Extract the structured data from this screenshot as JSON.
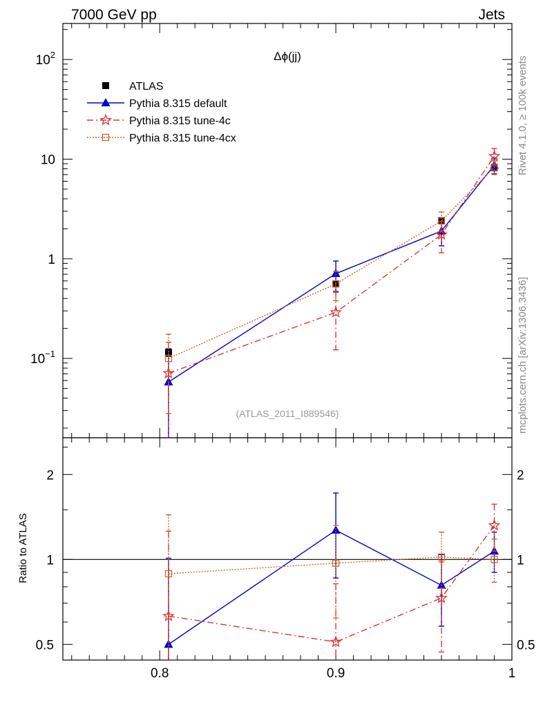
{
  "header": {
    "left": "7000 GeV pp",
    "right": "Jets"
  },
  "side": {
    "rivet": "Rivet 4.1.0, ≥ 100k events",
    "mcplots": "mcplots.cern.ch [arXiv:1306.3436]"
  },
  "colors": {
    "atlas": "#000000",
    "default": "#0000cc",
    "tune4c": "#dd3333",
    "tune4cx": "#cc6622"
  },
  "chart_data": {
    "type": "line",
    "title": "Δϕ(jj)",
    "watermark": "(ATLAS_2011_I889546)",
    "xlim": [
      0.745,
      1.0
    ],
    "xticks": [
      0.8,
      0.9,
      1.0
    ],
    "xtick_labels": [
      "0.8",
      "0.9",
      "1"
    ],
    "upper": {
      "yscale": "log",
      "ylim": [
        0.016,
        230
      ],
      "ytick_labels": [
        {
          "value": 0.1,
          "base": "10",
          "exp": "−1"
        },
        {
          "value": 1,
          "base": "1",
          "exp": ""
        },
        {
          "value": 10,
          "base": "10",
          "exp": ""
        },
        {
          "value": 100,
          "base": "10",
          "exp": "2"
        }
      ]
    },
    "lower": {
      "ylabel": "Ratio to ATLAS",
      "yscale": "log",
      "ylim": [
        0.44,
        2.7
      ],
      "ytick_labels": [
        {
          "value": 0.5,
          "label": "0.5"
        },
        {
          "value": 1,
          "label": "1"
        },
        {
          "value": 2,
          "label": "2"
        }
      ],
      "reference": 1
    },
    "series": [
      {
        "name": "ATLAS",
        "key": "atlas",
        "marker": "square-filled",
        "dash": "none",
        "points": [
          {
            "x": 0.805,
            "y": 0.115,
            "lo": 0.105,
            "hi": 0.125
          },
          {
            "x": 0.9,
            "y": 0.56,
            "lo": 0.53,
            "hi": 0.59
          },
          {
            "x": 0.96,
            "y": 2.42,
            "lo": 2.32,
            "hi": 2.52
          },
          {
            "x": 0.99,
            "y": 8.2,
            "lo": 7.7,
            "hi": 8.7
          }
        ],
        "ratio": []
      },
      {
        "name": "Pythia 8.315 default",
        "key": "default",
        "marker": "triangle-filled",
        "dash": "solid",
        "points": [
          {
            "x": 0.805,
            "y": 0.058,
            "lo": 0.0001,
            "hi": 0.118
          },
          {
            "x": 0.9,
            "y": 0.71,
            "lo": 0.47,
            "hi": 0.95
          },
          {
            "x": 0.96,
            "y": 1.9,
            "lo": 1.35,
            "hi": 2.45
          },
          {
            "x": 0.99,
            "y": 8.7,
            "lo": 7.1,
            "hi": 10.3
          }
        ],
        "ratio": [
          {
            "x": 0.805,
            "y": 0.5,
            "lo": 0.0001,
            "hi": 1.01
          },
          {
            "x": 0.9,
            "y": 1.27,
            "lo": 0.86,
            "hi": 1.72
          },
          {
            "x": 0.96,
            "y": 0.81,
            "lo": 0.58,
            "hi": 1.04
          },
          {
            "x": 0.99,
            "y": 1.07,
            "lo": 0.9,
            "hi": 1.25
          }
        ]
      },
      {
        "name": "Pythia 8.315 tune-4c",
        "key": "tune4c",
        "marker": "star-open",
        "dash": "dashdot",
        "points": [
          {
            "x": 0.805,
            "y": 0.071,
            "lo": 0.0001,
            "hi": 0.145
          },
          {
            "x": 0.9,
            "y": 0.29,
            "lo": 0.122,
            "hi": 0.46
          },
          {
            "x": 0.96,
            "y": 1.75,
            "lo": 1.15,
            "hi": 2.35
          },
          {
            "x": 0.99,
            "y": 10.7,
            "lo": 8.6,
            "hi": 12.8
          }
        ],
        "ratio": [
          {
            "x": 0.805,
            "y": 0.63,
            "lo": 0.0001,
            "hi": 1.26
          },
          {
            "x": 0.9,
            "y": 0.51,
            "lo": 0.21,
            "hi": 0.82
          },
          {
            "x": 0.96,
            "y": 0.73,
            "lo": 0.47,
            "hi": 0.98
          },
          {
            "x": 0.99,
            "y": 1.32,
            "lo": 1.07,
            "hi": 1.57
          }
        ]
      },
      {
        "name": "Pythia 8.315 tune-4cx",
        "key": "tune4cx",
        "marker": "square-open",
        "dash": "dotted",
        "points": [
          {
            "x": 0.805,
            "y": 0.1,
            "lo": 0.028,
            "hi": 0.175
          },
          {
            "x": 0.9,
            "y": 0.56,
            "lo": 0.38,
            "hi": 0.75
          },
          {
            "x": 0.96,
            "y": 2.4,
            "lo": 1.9,
            "hi": 2.95
          },
          {
            "x": 0.99,
            "y": 8.3,
            "lo": 7.0,
            "hi": 9.6
          }
        ],
        "ratio": [
          {
            "x": 0.805,
            "y": 0.89,
            "lo": 0.0001,
            "hi": 1.44
          },
          {
            "x": 0.9,
            "y": 0.97,
            "lo": 0.62,
            "hi": 1.32
          },
          {
            "x": 0.96,
            "y": 1.02,
            "lo": 0.79,
            "hi": 1.25
          },
          {
            "x": 0.99,
            "y": 1.0,
            "lo": 0.83,
            "hi": 1.18
          }
        ]
      }
    ]
  }
}
